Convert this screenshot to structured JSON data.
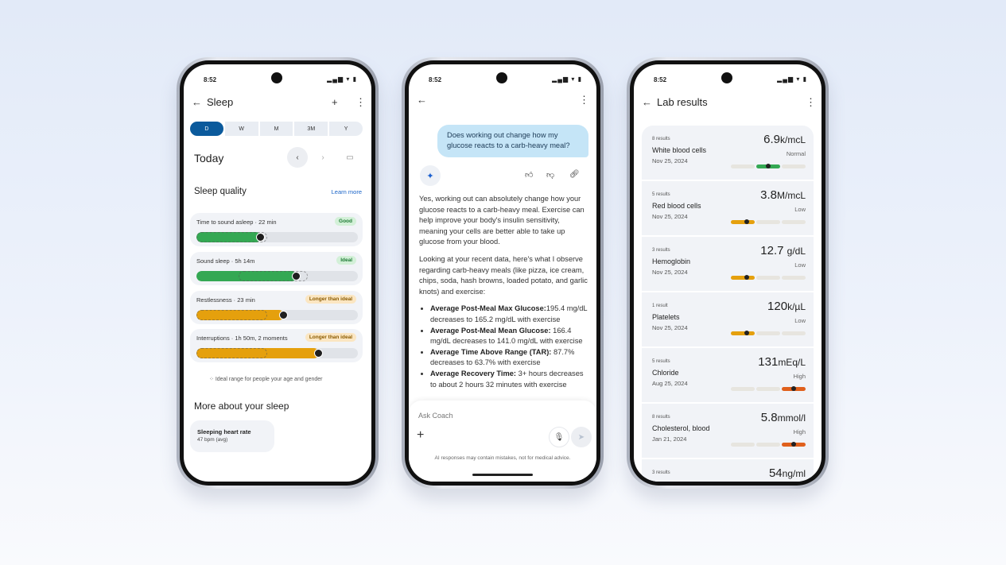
{
  "status": {
    "time": "8:52",
    "icons": "signal-wifi-battery"
  },
  "sleep": {
    "title": "Sleep",
    "tabs": [
      "D",
      "W",
      "M",
      "3M",
      "Y"
    ],
    "selected_tab": "D",
    "date_label": "Today",
    "section": "Sleep quality",
    "learn_more": "Learn more",
    "metrics": [
      {
        "label": "Time to sound asleep · 22 min",
        "badge": "Good",
        "color": "#34a853",
        "badge_bg": "#d3f0d8",
        "badge_fg": "#1e7a34",
        "value_pct": 40,
        "ideal_start": 0,
        "ideal_end": 44
      },
      {
        "label": "Sound sleep · 5h 14m",
        "badge": "Ideal",
        "color": "#34a853",
        "badge_bg": "#d3f0d8",
        "badge_fg": "#1e7a34",
        "value_pct": 62,
        "ideal_start": 26,
        "ideal_end": 69
      },
      {
        "label": "Restlessness · 23 min",
        "badge": "Longer than ideal",
        "color": "#e5a00d",
        "badge_bg": "#fbe6c2",
        "badge_fg": "#8a5a00",
        "value_pct": 54,
        "ideal_start": 0,
        "ideal_end": 44
      },
      {
        "label": "Interruptions · 1h 50m, 2 moments",
        "badge": "Longer than ideal",
        "color": "#e5a00d",
        "badge_bg": "#fbe6c2",
        "badge_fg": "#8a5a00",
        "value_pct": 76,
        "ideal_start": 0,
        "ideal_end": 44
      }
    ],
    "legend": "Ideal range for people your age and gender",
    "more_title": "More about your sleep",
    "hr_card": {
      "title": "Sleeping heart rate",
      "value": "47 bpm (avg)"
    }
  },
  "coach": {
    "question": "Does working out change how my glucose reacts to a carb-heavy meal?",
    "p1": "Yes, working out can absolutely change how your glucose reacts to a carb-heavy meal. Exercise can help improve your body's insulin sensitivity, meaning your cells are better able to take up glucose from your blood.",
    "p2": "Looking at your recent data, here's what I observe regarding carb-heavy meals (like pizza, ice cream, chips, soda, hash browns, loaded potato, and garlic knots) and exercise:",
    "bullets": [
      {
        "b": "Average Post-Meal Max Glucose:",
        "t": "195.4 mg/dL decreases to 165.2 mg/dL with exercise"
      },
      {
        "b": "Average Post-Meal Mean Glucose:",
        "t": " 166.4 mg/dL decreases to 141.0 mg/dL with exercise"
      },
      {
        "b": "Average Time Above Range (TAR):",
        "t": " 87.7% decreases to 63.7% with exercise"
      },
      {
        "b": "Average Recovery Time:",
        "t": "  3+ hours decreases to about 2 hours 32 minutes with exercise"
      }
    ],
    "input_placeholder": "Ask Coach",
    "disclaimer": "AI responses may contain mistakes, not for medical advice."
  },
  "labs": {
    "title": "Lab results",
    "items": [
      {
        "count": "8 results",
        "name": "White blood cells",
        "date": "Nov 25, 2024",
        "value": "6.9",
        "unit": "k/mcL",
        "status": "Normal",
        "segment": 1,
        "color": "#34a853",
        "marker_pct": 50
      },
      {
        "count": "5 results",
        "name": "Red blood cells",
        "date": "Nov 25, 2024",
        "value": "3.8",
        "unit": "M/mcL",
        "status": "Low",
        "segment": 0,
        "color": "#e5a00d",
        "marker_pct": 65
      },
      {
        "count": "3 results",
        "name": "Hemoglobin",
        "date": "Nov 25, 2024",
        "value": "12.7 ",
        "unit": "g/dL",
        "status": "Low",
        "segment": 0,
        "color": "#e5a00d",
        "marker_pct": 65
      },
      {
        "count": "1 result",
        "name": "Platelets",
        "date": "Nov 25, 2024",
        "value": "120",
        "unit": "k/µL",
        "status": "Low",
        "segment": 0,
        "color": "#e5a00d",
        "marker_pct": 65
      },
      {
        "count": "5 results",
        "name": "Chloride",
        "date": "Aug 25, 2024",
        "value": "131",
        "unit": "mEq/L",
        "status": "High",
        "segment": 2,
        "color": "#e0601c",
        "marker_pct": 50
      },
      {
        "count": "8 results",
        "name": "Cholesterol, blood",
        "date": "Jan 21, 2024",
        "value": "5.8",
        "unit": "mmol/l",
        "status": "High",
        "segment": 2,
        "color": "#e0601c",
        "marker_pct": 50
      },
      {
        "count": "3 results",
        "name": "",
        "date": "",
        "value": "54",
        "unit": "ng/ml",
        "status": "",
        "segment": -1,
        "color": "",
        "marker_pct": 0
      }
    ]
  }
}
